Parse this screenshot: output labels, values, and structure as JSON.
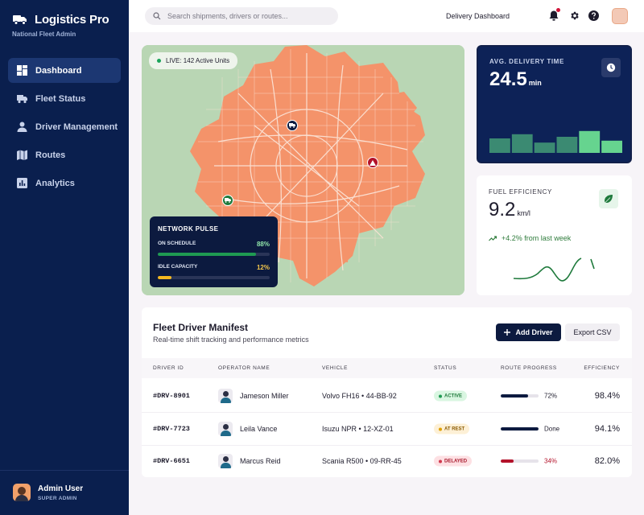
{
  "app": {
    "title": "Logistics Pro",
    "subtitle": "National Fleet Admin"
  },
  "sidebar": {
    "items": [
      {
        "label": "Dashboard",
        "icon": "grid-icon",
        "active": true
      },
      {
        "label": "Fleet Status",
        "icon": "truck-icon"
      },
      {
        "label": "Driver Management",
        "icon": "person-icon"
      },
      {
        "label": "Routes",
        "icon": "map-icon"
      },
      {
        "label": "Analytics",
        "icon": "chart-icon"
      }
    ],
    "user": {
      "name": "Admin User",
      "role": "SUPER ADMIN"
    }
  },
  "topbar": {
    "search_placeholder": "Search shipments, drivers or routes...",
    "page_title": "Delivery Dashboard",
    "icons": [
      "bell-icon",
      "gear-icon",
      "help-icon"
    ]
  },
  "map": {
    "live_label": "LIVE: 142 Active Units",
    "pulse": {
      "title": "NETWORK PULSE",
      "rows": [
        {
          "label": "ON SCHEDULE",
          "value": "88%",
          "fraction": 0.88,
          "color": "#1f9a52"
        },
        {
          "label": "IDLE CAPACITY",
          "value": "12%",
          "fraction": 0.12,
          "color": "#f4b820"
        }
      ]
    },
    "colors": {
      "land": "#b9d6b4",
      "urban": "#f4936a",
      "roads": "#fbe3d6"
    }
  },
  "delivery": {
    "label": "AVG. DELIVERY TIME",
    "value": "24.5",
    "unit": "min",
    "bars": [
      0.45,
      0.58,
      0.32,
      0.5,
      0.68,
      0.38
    ],
    "bar_colors": [
      "#3b8a72",
      "#3b8a72",
      "#3b8a72",
      "#3b8a72",
      "#66d48f",
      "#66d48f"
    ]
  },
  "fuel": {
    "label": "FUEL EFFICIENCY",
    "value": "9.2",
    "unit": "km/l",
    "trend": "+4.2% from last week"
  },
  "manifest": {
    "title": "Fleet Driver Manifest",
    "subtitle": "Real-time shift tracking and performance metrics",
    "add_label": "Add Driver",
    "export_label": "Export CSV",
    "columns": [
      "DRIVER ID",
      "OPERATOR NAME",
      "VEHICLE",
      "STATUS",
      "ROUTE PROGRESS",
      "EFFICIENCY"
    ],
    "rows": [
      {
        "id": "#DRV-8901",
        "name": "Jameson Miller",
        "vehicle": "Volvo FH16 • 44-BB-92",
        "status": "ACTIVE",
        "progress_text": "72%",
        "progress": 0.72,
        "efficiency": "98.4%"
      },
      {
        "id": "#DRV-7723",
        "name": "Leila Vance",
        "vehicle": "Isuzu NPR • 12-XZ-01",
        "status": "AT REST",
        "progress_text": "Done",
        "progress": 1.0,
        "efficiency": "94.1%"
      },
      {
        "id": "#DRV-6651",
        "name": "Marcus Reid",
        "vehicle": "Scania R500 • 09-RR-45",
        "status": "DELAYED",
        "progress_text": "34%",
        "progress": 0.34,
        "efficiency": "82.0%"
      }
    ],
    "status_styles": {
      "ACTIVE": {
        "bg": "#d9f6e1",
        "fg": "#1f7a3c",
        "dot": "#1f9a52"
      },
      "AT REST": {
        "bg": "#fdf0d6",
        "fg": "#8a5a00",
        "dot": "#e0a000"
      },
      "DELAYED": {
        "bg": "#fde0e3",
        "fg": "#a8172b",
        "dot": "#d1394e"
      }
    },
    "progress_colors": {
      "ACTIVE": "#0c1a3f",
      "AT REST": "#0c1a3f",
      "DELAYED": "#b3122a"
    },
    "progress_text_colors": {
      "ACTIVE": "#1d1b2c",
      "AT REST": "#1d1b2c",
      "DELAYED": "#b3122a"
    }
  }
}
